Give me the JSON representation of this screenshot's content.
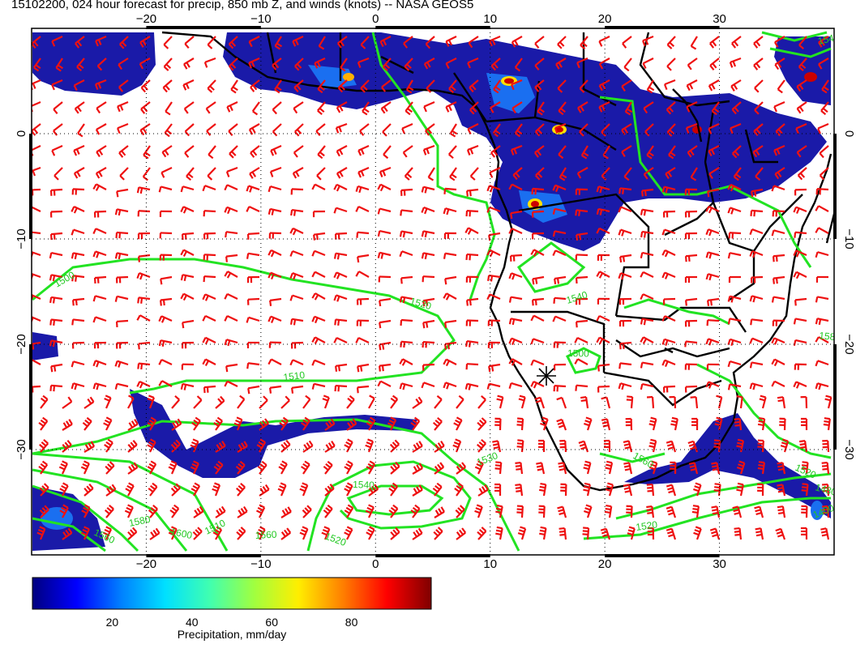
{
  "title": "15102200, 024 hour forecast for precip, 850 mb Z, and winds (knots) -- NASA GEOS5",
  "map": {
    "lon_ticks": [
      -20,
      -10,
      0,
      10,
      20,
      30
    ],
    "lat_ticks": [
      0,
      -10,
      -20,
      -30
    ],
    "lon_range": [
      -30,
      40
    ],
    "lat_range": [
      -40,
      10
    ],
    "grid": "dotted",
    "layers": [
      "precipitation shading",
      "850 mb geopotential height contours",
      "wind barbs",
      "coastlines and country borders"
    ],
    "contour_color": "#00ee00",
    "barb_color": "#ee0000",
    "contour_labels": [
      "1500",
      "1510",
      "1520",
      "1530",
      "1540",
      "1560",
      "1580",
      "1600",
      "1510",
      "1560",
      "1520",
      "1540",
      "1580",
      "1560",
      "1520",
      "1480",
      "1400",
      "1500",
      "1520",
      "1540"
    ],
    "marker": "star"
  },
  "colorbar": {
    "title": "Precipitation, mm/day",
    "ticks": [
      "20",
      "40",
      "60",
      "80"
    ],
    "tick_values": [
      20,
      40,
      60,
      80
    ],
    "range": [
      0,
      100
    ],
    "colors": [
      "#00007f",
      "#0000ff",
      "#0080ff",
      "#00e0ff",
      "#40ffb0",
      "#a0ff40",
      "#ffee00",
      "#ff8000",
      "#ff0000",
      "#7f0000"
    ]
  }
}
